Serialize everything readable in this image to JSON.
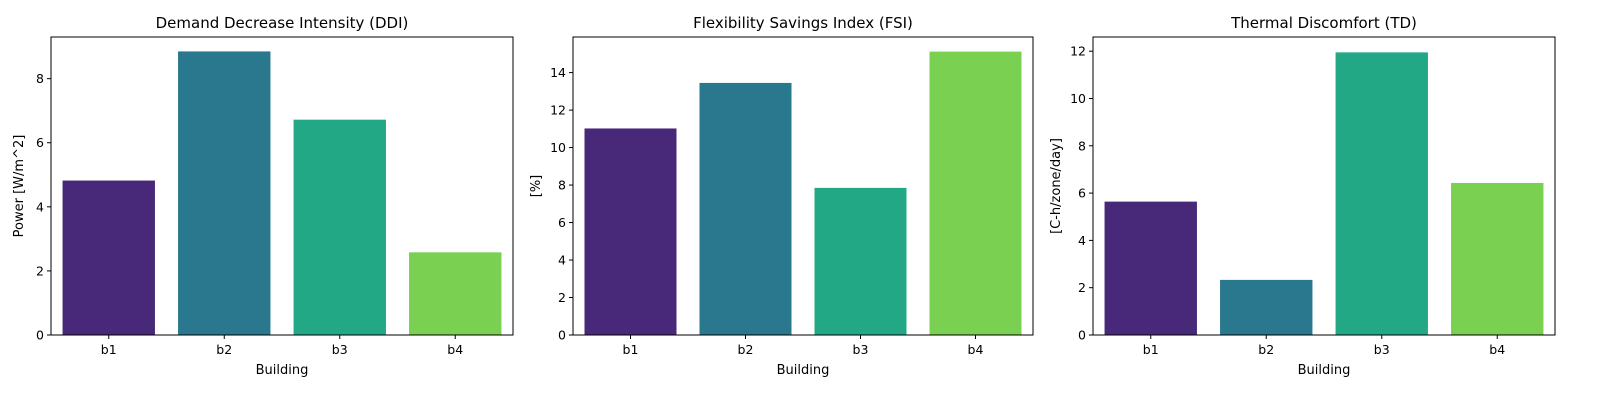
{
  "chart_data": [
    {
      "type": "bar",
      "title": "Demand Decrease Intensity (DDI)",
      "xlabel": "Building",
      "ylabel": "Power [W/m^2]",
      "categories": [
        "b1",
        "b2",
        "b3",
        "b4"
      ],
      "values": [
        4.82,
        8.85,
        6.72,
        2.58
      ],
      "ylim": [
        0,
        9.3
      ],
      "yticks": [
        0,
        2,
        4,
        6,
        8
      ],
      "colors": [
        "#482878",
        "#2a788e",
        "#22a884",
        "#7ad151"
      ],
      "grid": false
    },
    {
      "type": "bar",
      "title": "Flexibility Savings Index (FSI)",
      "xlabel": "Building",
      "ylabel": "[%]",
      "categories": [
        "b1",
        "b2",
        "b3",
        "b4"
      ],
      "values": [
        11.02,
        13.45,
        7.85,
        15.12
      ],
      "ylim": [
        0,
        15.9
      ],
      "yticks": [
        0,
        2,
        4,
        6,
        8,
        10,
        12,
        14
      ],
      "colors": [
        "#482878",
        "#2a788e",
        "#22a884",
        "#7ad151"
      ],
      "grid": false
    },
    {
      "type": "bar",
      "title": "Thermal Discomfort (TD)",
      "xlabel": "Building",
      "ylabel": "[C-h/zone/day]",
      "categories": [
        "b1",
        "b2",
        "b3",
        "b4"
      ],
      "values": [
        5.64,
        2.33,
        11.95,
        6.43
      ],
      "ylim": [
        0,
        12.6
      ],
      "yticks": [
        0,
        2,
        4,
        6,
        8,
        10,
        12
      ],
      "colors": [
        "#482878",
        "#2a788e",
        "#22a884",
        "#7ad151"
      ],
      "grid": false
    }
  ]
}
